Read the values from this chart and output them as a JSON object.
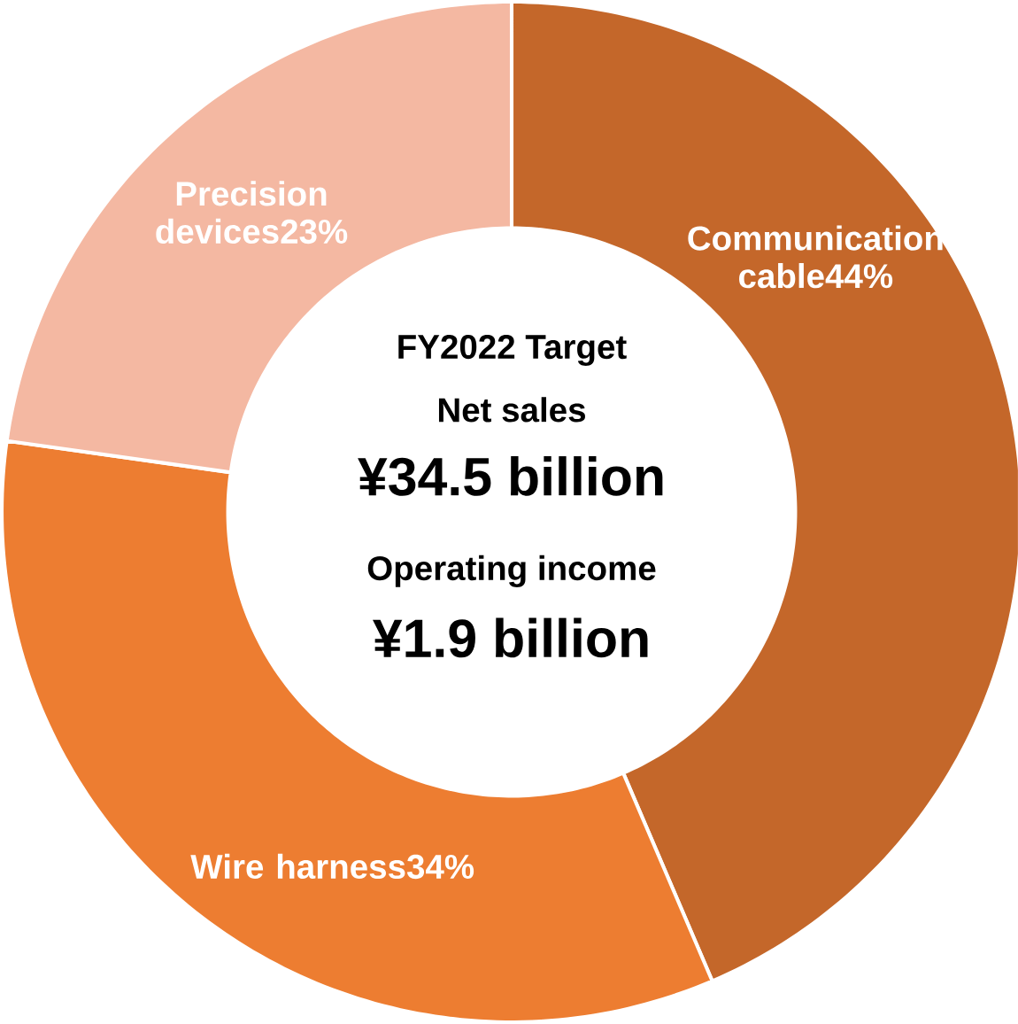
{
  "chart_data": {
    "type": "donut",
    "categories": [
      "Communication cable",
      "Wire harness",
      "Precision devices"
    ],
    "values": [
      44,
      34,
      23
    ],
    "value_labels": [
      "44%",
      "34%",
      "23%"
    ],
    "colors": [
      "#c4672a",
      "#ed7d31",
      "#f4b8a2"
    ],
    "annotations": [
      "FY2022 Target",
      "Net sales",
      "¥34.5 billion",
      "Operating income",
      "¥1.9 billion"
    ]
  }
}
